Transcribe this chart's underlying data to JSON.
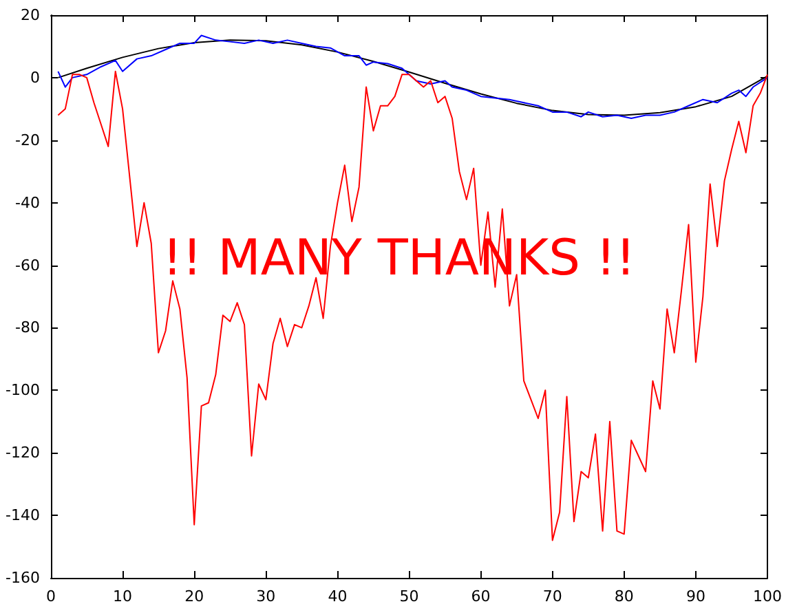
{
  "chart_data": {
    "type": "line",
    "annotations": [
      "!! MANY THANKS !!"
    ],
    "series": [
      {
        "color": "#ff0000",
        "x": [
          1,
          2,
          3,
          4,
          5,
          6,
          7,
          8,
          9,
          10,
          11,
          12,
          13,
          14,
          15,
          16,
          17,
          18,
          19,
          20,
          21,
          22,
          23,
          24,
          25,
          26,
          27,
          28,
          29,
          30,
          31,
          32,
          33,
          34,
          35,
          36,
          37,
          38,
          39,
          40,
          41,
          42,
          43,
          44,
          45,
          46,
          47,
          48,
          49,
          50,
          51,
          52,
          53,
          54,
          55,
          56,
          57,
          58,
          59,
          60,
          61,
          62,
          63,
          64,
          65,
          66,
          67,
          68,
          69,
          70,
          71,
          72,
          73,
          74,
          75,
          76,
          77,
          78,
          79,
          80,
          81,
          82,
          83,
          84,
          85,
          86,
          87,
          88,
          89,
          90,
          91,
          92,
          93,
          94,
          95,
          96,
          97,
          98,
          99,
          100
        ],
        "values": [
          -12,
          -10,
          1,
          1,
          0,
          -8,
          -15,
          -22,
          2,
          -10,
          -32,
          -54,
          -40,
          -53,
          -88,
          -81,
          -65,
          -74,
          -96,
          -143,
          -105,
          -104,
          -95,
          -76,
          -78,
          -72,
          -79,
          -121,
          -98,
          -103,
          -85,
          -77,
          -86,
          -79,
          -80,
          -73,
          -64,
          -77,
          -54,
          -40,
          -28,
          -46,
          -35,
          -3,
          -17,
          -9,
          -9,
          -6,
          1,
          1,
          -1,
          -3,
          -1,
          -8,
          -6,
          -13,
          -30,
          -39,
          -29,
          -60,
          -43,
          -67,
          -42,
          -73,
          -63,
          -97,
          -103,
          -109,
          -100,
          -148,
          -139,
          -102,
          -142,
          -126,
          -128,
          -114,
          -145,
          -110,
          -145,
          -146,
          -116,
          -121,
          -126,
          -97,
          -106,
          -74,
          -88,
          -68,
          -47,
          -91,
          -70,
          -34,
          -54,
          -33,
          -23,
          -14,
          -24,
          -9,
          -5,
          1
        ]
      },
      {
        "color": "#0000ff",
        "x": [
          1,
          2,
          3,
          5,
          7,
          9,
          10,
          12,
          14,
          16,
          18,
          20,
          21,
          23,
          25,
          27,
          29,
          31,
          33,
          35,
          37,
          39,
          41,
          43,
          44,
          45,
          47,
          49,
          51,
          53,
          55,
          56,
          58,
          60,
          62,
          64,
          66,
          68,
          70,
          72,
          74,
          75,
          77,
          79,
          81,
          83,
          85,
          87,
          89,
          91,
          93,
          95,
          96,
          97,
          98,
          100
        ],
        "values": [
          2,
          -3,
          0,
          1,
          3.5,
          5.5,
          2,
          6,
          7,
          9,
          11,
          11,
          13.5,
          12,
          11.5,
          11,
          12,
          11,
          12,
          11,
          10,
          9.5,
          7,
          7,
          4,
          5,
          4.5,
          3,
          -1,
          -2,
          -1,
          -3,
          -4,
          -6,
          -6.5,
          -7,
          -8,
          -9,
          -11,
          -11,
          -12.5,
          -11,
          -12.5,
          -12,
          -13,
          -12,
          -12,
          -11,
          -9,
          -7,
          -8,
          -5,
          -4,
          -6,
          -3,
          0
        ]
      },
      {
        "color": "#000000",
        "x": [
          1,
          5,
          10,
          15,
          20,
          25,
          30,
          35,
          40,
          45,
          50,
          55,
          60,
          65,
          70,
          75,
          80,
          85,
          90,
          95,
          100
        ],
        "values": [
          0,
          3,
          6.5,
          9.3,
          11.2,
          12,
          11.8,
          10.5,
          8.2,
          5.2,
          1.8,
          -1.8,
          -5.2,
          -8.2,
          -10.5,
          -11.8,
          -12,
          -11.2,
          -9.3,
          -6,
          0.5
        ]
      }
    ],
    "xlim": [
      0,
      100
    ],
    "xticks": [
      0,
      10,
      20,
      30,
      40,
      50,
      60,
      70,
      80,
      90,
      100
    ],
    "ylim": [
      -160,
      20
    ],
    "yticks": [
      -160,
      -140,
      -120,
      -100,
      -80,
      -60,
      -40,
      -20,
      0,
      20
    ],
    "grid": false,
    "marker": "none",
    "line_style": "solid"
  }
}
